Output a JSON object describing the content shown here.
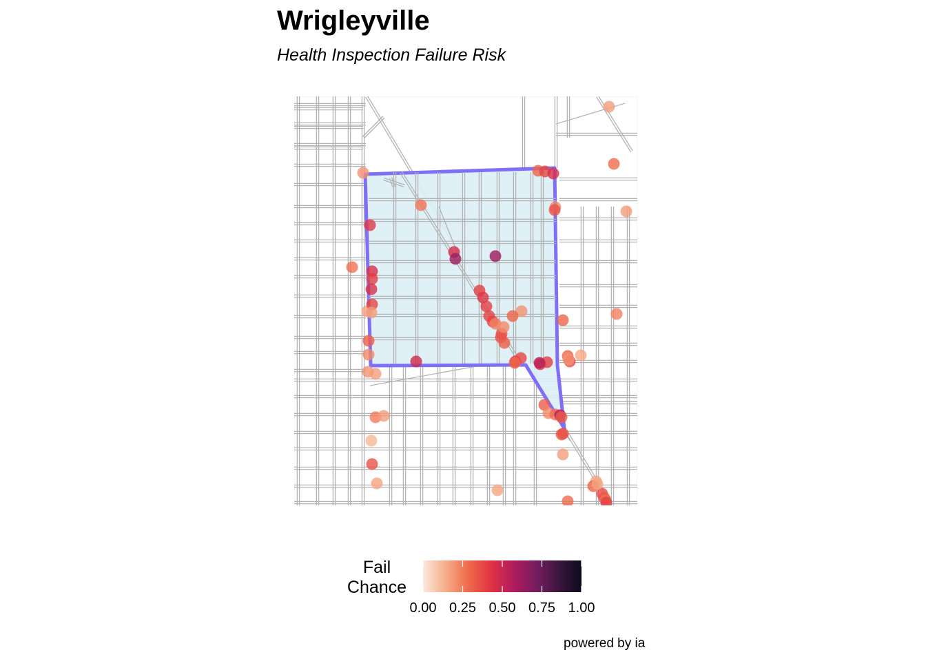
{
  "title": "Wrigleyville",
  "subtitle": "Health Inspection Failure Risk",
  "legend": {
    "title_line1": "Fail",
    "title_line2": "Chance",
    "ticks": [
      "0.00",
      "0.25",
      "0.50",
      "0.75",
      "1.00"
    ],
    "tick_values": [
      0,
      0.25,
      0.5,
      0.75,
      1.0
    ],
    "palette": [
      "#fbe9dd",
      "#f6ad8a",
      "#ef6a4b",
      "#e13342",
      "#b01c5e",
      "#751d5f",
      "#3b163f",
      "#0d0a1d"
    ]
  },
  "caption": "powered by ia",
  "colors": {
    "zone_fill": "#ddeef6",
    "zone_border": "#7f6ff7",
    "street": "#b3b3b3"
  },
  "chart_data": {
    "type": "scatter",
    "description_units": "fail chance 0-1 per establishment",
    "points": [
      {
        "id": 1,
        "fail": 0.18
      },
      {
        "id": 2,
        "fail": 0.28
      },
      {
        "id": 3,
        "fail": 0.18
      },
      {
        "id": 4,
        "fail": 0.2
      },
      {
        "id": 5,
        "fail": 0.3
      },
      {
        "id": 6,
        "fail": 0.38
      },
      {
        "id": 7,
        "fail": 0.45
      },
      {
        "id": 8,
        "fail": 0.22
      },
      {
        "id": 9,
        "fail": 0.35
      },
      {
        "id": 10,
        "fail": 0.26
      },
      {
        "id": 11,
        "fail": 0.42
      },
      {
        "id": 12,
        "fail": 0.47
      },
      {
        "id": 13,
        "fail": 0.62
      },
      {
        "id": 14,
        "fail": 0.62
      },
      {
        "id": 15,
        "fail": 0.27
      },
      {
        "id": 16,
        "fail": 0.16
      },
      {
        "id": 17,
        "fail": 0.45
      },
      {
        "id": 18,
        "fail": 0.4
      },
      {
        "id": 19,
        "fail": 0.45
      },
      {
        "id": 20,
        "fail": 0.38
      },
      {
        "id": 21,
        "fail": 0.18
      },
      {
        "id": 22,
        "fail": 0.3
      },
      {
        "id": 23,
        "fail": 0.4
      },
      {
        "id": 24,
        "fail": 0.42
      },
      {
        "id": 25,
        "fail": 0.4
      },
      {
        "id": 26,
        "fail": 0.38
      },
      {
        "id": 27,
        "fail": 0.4
      },
      {
        "id": 28,
        "fail": 0.36
      },
      {
        "id": 29,
        "fail": 0.32
      },
      {
        "id": 30,
        "fail": 0.24
      },
      {
        "id": 31,
        "fail": 0.2
      },
      {
        "id": 32,
        "fail": 0.3
      },
      {
        "id": 33,
        "fail": 0.35
      },
      {
        "id": 34,
        "fail": 0.32
      },
      {
        "id": 35,
        "fail": 0.42
      },
      {
        "id": 36,
        "fail": 0.38
      },
      {
        "id": 37,
        "fail": 0.3
      },
      {
        "id": 38,
        "fail": 0.42
      },
      {
        "id": 39,
        "fail": 0.4
      },
      {
        "id": 40,
        "fail": 0.55
      },
      {
        "id": 41,
        "fail": 0.48
      },
      {
        "id": 42,
        "fail": 0.22
      },
      {
        "id": 43,
        "fail": 0.3
      },
      {
        "id": 44,
        "fail": 0.15
      },
      {
        "id": 45,
        "fail": 0.36
      },
      {
        "id": 46,
        "fail": 0.2
      },
      {
        "id": 47,
        "fail": 0.32
      },
      {
        "id": 48,
        "fail": 0.22
      },
      {
        "id": 49,
        "fail": 0.28
      },
      {
        "id": 50,
        "fail": 0.55
      },
      {
        "id": 51,
        "fail": 0.32
      },
      {
        "id": 52,
        "fail": 0.2
      },
      {
        "id": 53,
        "fail": 0.18
      },
      {
        "id": 54,
        "fail": 0.25
      },
      {
        "id": 55,
        "fail": 0.18
      },
      {
        "id": 56,
        "fail": 0.12
      },
      {
        "id": 57,
        "fail": 0.35
      },
      {
        "id": 58,
        "fail": 0.16
      },
      {
        "id": 59,
        "fail": 0.18
      },
      {
        "id": 60,
        "fail": 0.3
      },
      {
        "id": 61,
        "fail": 0.36
      },
      {
        "id": 62,
        "fail": 0.16
      },
      {
        "id": 63,
        "fail": 0.28
      },
      {
        "id": 64,
        "fail": 0.16
      },
      {
        "id": 65,
        "fail": 0.3
      },
      {
        "id": 66,
        "fail": 0.36
      },
      {
        "id": 67,
        "fail": 0.34
      },
      {
        "id": 68,
        "fail": 0.28
      },
      {
        "id": 69,
        "fail": 0.4
      },
      {
        "id": 70,
        "fail": 0.16
      },
      {
        "id": 71,
        "fail": 0.24
      },
      {
        "id": 72,
        "fail": 0.22
      }
    ]
  }
}
